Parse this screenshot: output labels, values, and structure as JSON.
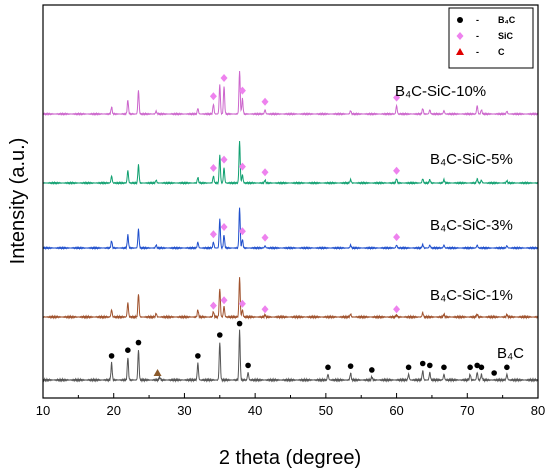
{
  "chart_data": {
    "type": "line",
    "xlabel": "2 theta (degree)",
    "ylabel": "Intensity (a.u.)",
    "xlim": [
      10,
      80
    ],
    "x_ticks": [
      10,
      20,
      30,
      40,
      50,
      60,
      70,
      80
    ],
    "y_ticks_shown": false,
    "grid": false,
    "legend_position": "top-right",
    "legend": [
      {
        "marker": "circle",
        "color": "#000000",
        "dash": "-",
        "label": "B₄C"
      },
      {
        "marker": "diamond",
        "color": "#ee82ee",
        "dash": "-",
        "label": "SiC"
      },
      {
        "marker": "triangle",
        "color": "#e00000",
        "dash": "-",
        "label": "C"
      }
    ],
    "series": [
      {
        "name": "B₄C",
        "color": "#555555",
        "peaks": [
          [
            19.7,
            0.45
          ],
          [
            22.0,
            0.6
          ],
          [
            23.5,
            0.8
          ],
          [
            26.5,
            0.08
          ],
          [
            31.9,
            0.45
          ],
          [
            35.0,
            1.0
          ],
          [
            37.8,
            1.3
          ],
          [
            39.0,
            0.2
          ],
          [
            50.3,
            0.15
          ],
          [
            53.5,
            0.18
          ],
          [
            56.5,
            0.08
          ],
          [
            61.7,
            0.15
          ],
          [
            63.7,
            0.25
          ],
          [
            64.7,
            0.2
          ],
          [
            66.7,
            0.15
          ],
          [
            70.4,
            0.15
          ],
          [
            71.4,
            0.2
          ],
          [
            72.0,
            0.15
          ],
          [
            75.6,
            0.15
          ]
        ],
        "markers": [
          {
            "type": "circle",
            "x": [
              19.7,
              22.0,
              23.5,
              31.9,
              35.0,
              37.8,
              39.0,
              50.3,
              53.5,
              56.5,
              61.7,
              63.7,
              64.7,
              66.7,
              70.4,
              71.4,
              72.0,
              73.8,
              75.6
            ]
          },
          {
            "type": "triangle",
            "x": [
              26.2
            ]
          }
        ]
      },
      {
        "name": "B₄C-SiC-1%",
        "color": "#a0522d",
        "peaks": [
          [
            19.7,
            0.2
          ],
          [
            22.0,
            0.4
          ],
          [
            23.5,
            0.65
          ],
          [
            26.0,
            0.1
          ],
          [
            31.9,
            0.2
          ],
          [
            34.1,
            0.15
          ],
          [
            35.0,
            0.8
          ],
          [
            35.6,
            0.3
          ],
          [
            37.8,
            1.1
          ],
          [
            38.2,
            0.2
          ],
          [
            41.4,
            0.05
          ],
          [
            53.5,
            0.08
          ],
          [
            60.0,
            0.05
          ],
          [
            63.7,
            0.12
          ],
          [
            66.7,
            0.08
          ],
          [
            71.4,
            0.08
          ],
          [
            75.6,
            0.06
          ]
        ],
        "markers": [
          {
            "type": "diamond",
            "x": [
              34.1,
              35.6,
              38.2,
              41.4,
              60.0
            ]
          }
        ]
      },
      {
        "name": "B₄C-SiC-3%",
        "color": "#1f4fcc",
        "peaks": [
          [
            19.7,
            0.25
          ],
          [
            22.0,
            0.45
          ],
          [
            23.5,
            0.65
          ],
          [
            26.0,
            0.1
          ],
          [
            31.9,
            0.2
          ],
          [
            34.1,
            0.2
          ],
          [
            35.0,
            1.0
          ],
          [
            35.6,
            0.45
          ],
          [
            37.8,
            1.4
          ],
          [
            38.2,
            0.3
          ],
          [
            41.4,
            0.08
          ],
          [
            53.5,
            0.1
          ],
          [
            60.0,
            0.1
          ],
          [
            63.7,
            0.12
          ],
          [
            64.7,
            0.1
          ],
          [
            66.7,
            0.1
          ],
          [
            71.4,
            0.1
          ],
          [
            75.6,
            0.08
          ]
        ],
        "markers": [
          {
            "type": "diamond",
            "x": [
              34.1,
              35.6,
              38.2,
              41.4,
              60.0
            ]
          }
        ]
      },
      {
        "name": "B₄C-SiC-5%",
        "color": "#10a070",
        "peaks": [
          [
            19.7,
            0.25
          ],
          [
            22.0,
            0.45
          ],
          [
            23.5,
            0.65
          ],
          [
            26.0,
            0.1
          ],
          [
            31.9,
            0.2
          ],
          [
            34.1,
            0.25
          ],
          [
            35.0,
            1.0
          ],
          [
            35.6,
            0.55
          ],
          [
            37.8,
            1.5
          ],
          [
            38.2,
            0.3
          ],
          [
            41.4,
            0.1
          ],
          [
            53.5,
            0.12
          ],
          [
            60.0,
            0.15
          ],
          [
            63.7,
            0.15
          ],
          [
            64.7,
            0.12
          ],
          [
            66.7,
            0.12
          ],
          [
            71.4,
            0.15
          ],
          [
            72.0,
            0.1
          ],
          [
            75.6,
            0.08
          ]
        ],
        "markers": [
          {
            "type": "diamond",
            "x": [
              34.1,
              35.6,
              38.2,
              41.4,
              60.0
            ]
          }
        ]
      },
      {
        "name": "B₄C-SiC-10%",
        "color": "#cc66cc",
        "peaks": [
          [
            19.7,
            0.25
          ],
          [
            22.0,
            0.5
          ],
          [
            23.5,
            0.85
          ],
          [
            26.0,
            0.1
          ],
          [
            31.9,
            0.2
          ],
          [
            34.1,
            0.35
          ],
          [
            35.0,
            1.05
          ],
          [
            35.6,
            1.0
          ],
          [
            37.8,
            1.55
          ],
          [
            38.2,
            0.55
          ],
          [
            41.4,
            0.15
          ],
          [
            53.5,
            0.12
          ],
          [
            60.0,
            0.3
          ],
          [
            63.7,
            0.2
          ],
          [
            64.7,
            0.15
          ],
          [
            66.7,
            0.12
          ],
          [
            71.4,
            0.3
          ],
          [
            72.0,
            0.15
          ],
          [
            75.6,
            0.1
          ]
        ],
        "markers": [
          {
            "type": "diamond",
            "x": [
              34.1,
              35.6,
              38.2,
              41.4,
              60.0
            ]
          }
        ]
      }
    ]
  }
}
